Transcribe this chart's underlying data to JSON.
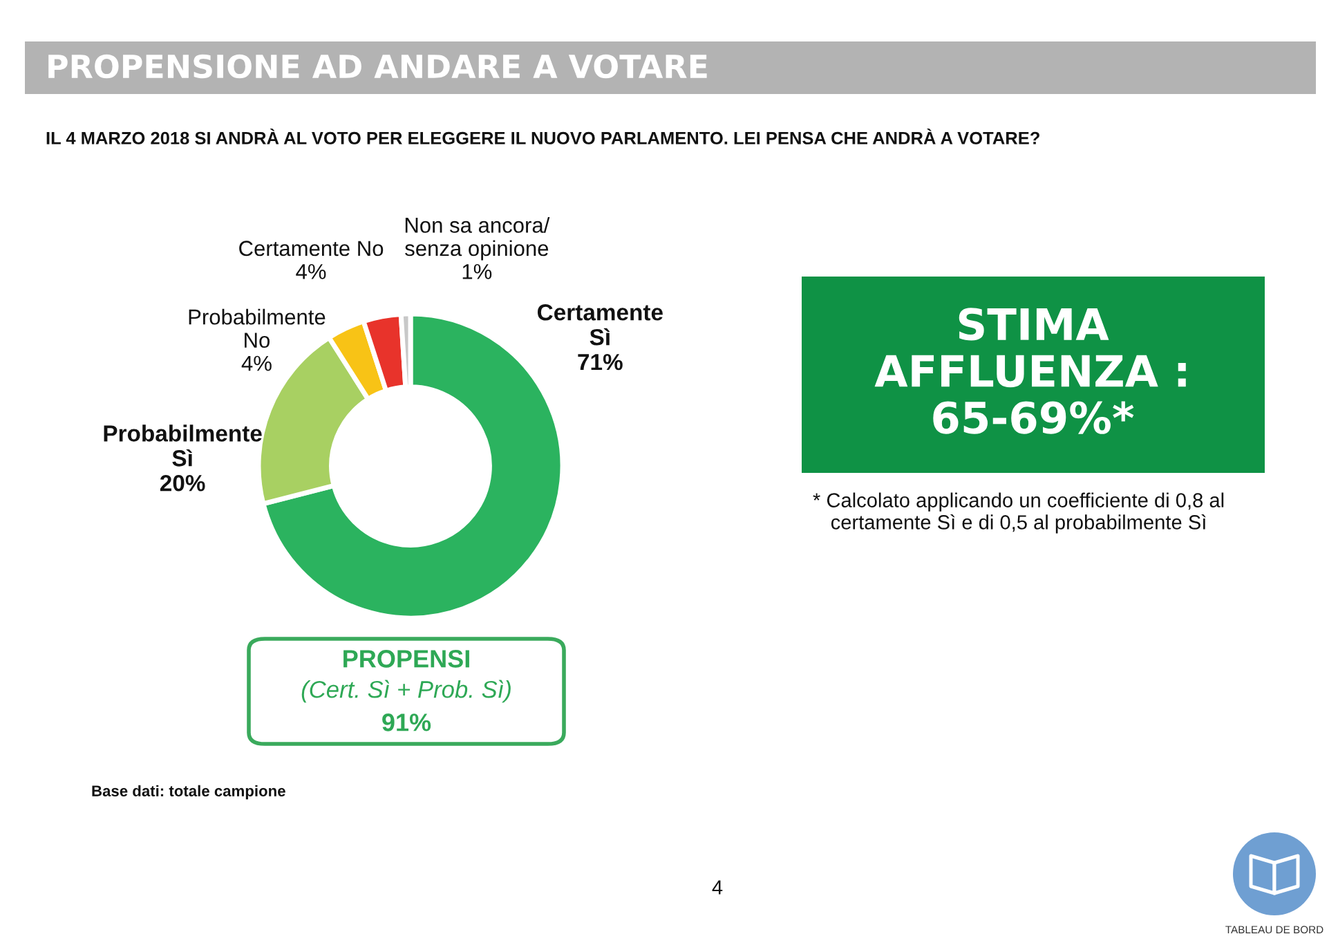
{
  "chart_data": {
    "type": "donut",
    "title": "PROPENSIONE AD ANDARE A VOTARE",
    "subtitle": "IL 4 MARZO 2018 SI ANDRÀ AL VOTO PER ELEGGERE IL NUOVO PARLAMENTO. LEI PENSA CHE ANDRÀ A VOTARE?",
    "categories": [
      "Certamente\nSì",
      "Probabilmente\nSì",
      "Probabilmente\nNo",
      "Certamente No",
      "Non sa ancora/\nsenza opinione"
    ],
    "values": [
      71,
      20,
      4,
      4,
      1
    ],
    "colors": [
      "#2bb35f",
      "#a8d062",
      "#f8c316",
      "#e8332b",
      "#c8c8c8"
    ],
    "value_labels": [
      "71%",
      "20%",
      "4%",
      "4%",
      "1%"
    ],
    "annotations": [
      "PROPENSI",
      "(Cert. Sì + Prob. Sì)",
      "91%",
      "STIMA\nAFFLUENZA :\n65-69%*",
      "* Calcolato applicando un coefficiente di 0,8 al\ncertamente Sì e di 0,5 al probabilmente Sì",
      "Base dati: totale campione",
      "4",
      "TABLEAU DE BORD"
    ]
  }
}
